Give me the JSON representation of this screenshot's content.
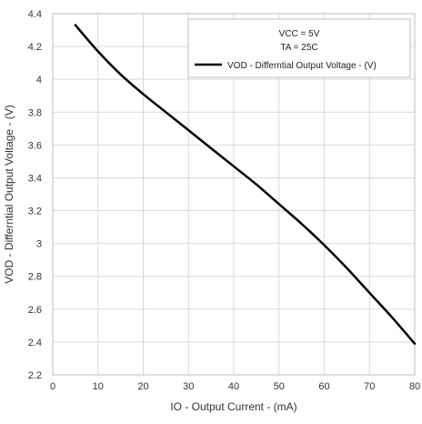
{
  "chart_data": {
    "type": "line",
    "title": "",
    "xlabel": "IO - Output Current - (mA)",
    "ylabel": "VOD - Differntial Output Voltage - (V)",
    "xlim": [
      0,
      80
    ],
    "ylim": [
      2.2,
      4.4
    ],
    "xticks": [
      0,
      10,
      20,
      30,
      40,
      50,
      60,
      70,
      80
    ],
    "yticks": [
      2.2,
      2.4,
      2.6,
      2.8,
      3,
      3.2,
      3.4,
      3.6,
      3.8,
      4,
      4.2,
      4.4
    ],
    "grid": true,
    "legend_position": "top-right",
    "annotations": [
      "VCC = 5V",
      "TA = 25C"
    ],
    "series": [
      {
        "name": "VOD - Differntial Output Voltage - (V)",
        "color": "#000000",
        "x": [
          5,
          10,
          15,
          20,
          25,
          30,
          35,
          40,
          45,
          50,
          55,
          60,
          65,
          70,
          75,
          80
        ],
        "y": [
          4.33,
          4.17,
          4.03,
          3.91,
          3.8,
          3.69,
          3.58,
          3.47,
          3.36,
          3.24,
          3.12,
          2.99,
          2.85,
          2.7,
          2.55,
          2.39
        ]
      }
    ]
  }
}
